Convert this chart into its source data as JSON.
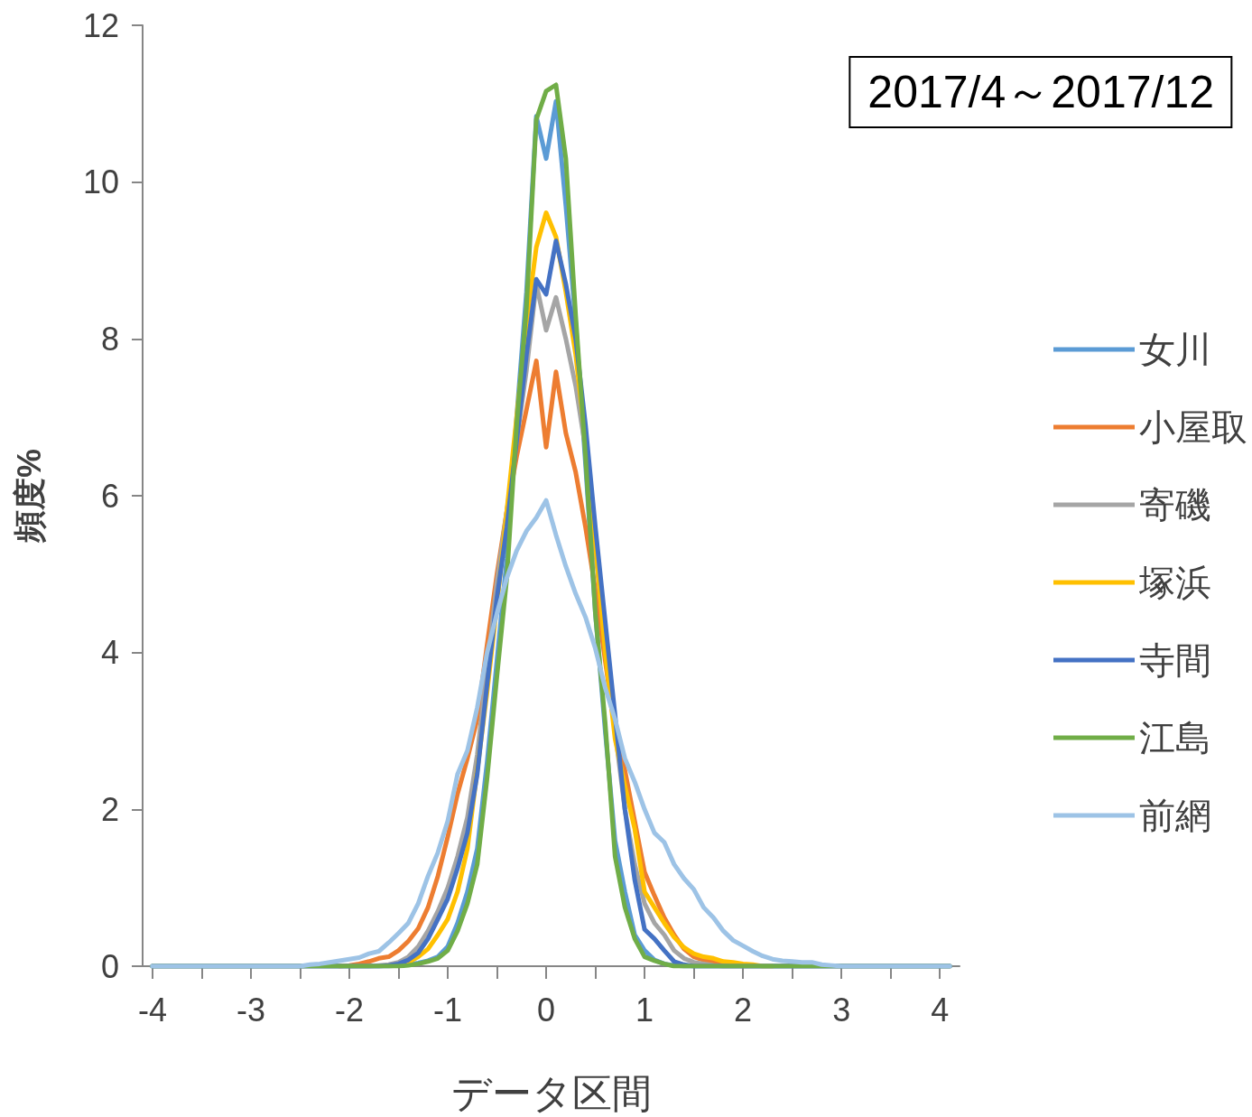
{
  "chart_data": {
    "type": "line",
    "title": "2017/4～2017/12",
    "xlabel": "データ区間",
    "ylabel": "頻度%",
    "x": [
      -4,
      -3,
      -2.5,
      -2.4,
      -2.3,
      -2.2,
      -2.1,
      -2.0,
      -1.9,
      -1.8,
      -1.7,
      -1.6,
      -1.5,
      -1.4,
      -1.3,
      -1.2,
      -1.1,
      -1.0,
      -0.9,
      -0.8,
      -0.7,
      -0.6,
      -0.5,
      -0.4,
      -0.3,
      -0.2,
      -0.1,
      0,
      0.1,
      0.2,
      0.3,
      0.4,
      0.5,
      0.6,
      0.7,
      0.8,
      0.9,
      1.0,
      1.1,
      1.2,
      1.3,
      1.4,
      1.5,
      1.6,
      1.7,
      1.8,
      1.9,
      2.0,
      2.1,
      2.2,
      2.3,
      2.4,
      2.5,
      2.6,
      2.7,
      2.8,
      2.9,
      3.0,
      4.1
    ],
    "series": [
      {
        "name": "女川",
        "color": "#5b9bd5",
        "values": [
          0,
          0,
          0,
          0,
          0,
          0,
          0,
          0,
          0,
          0,
          0,
          0,
          0.01,
          0.02,
          0.04,
          0.07,
          0.12,
          0.25,
          0.55,
          0.95,
          1.5,
          2.6,
          3.9,
          5.2,
          7.0,
          8.6,
          10.84,
          10.3,
          11.03,
          9.7,
          8.2,
          6.4,
          4.5,
          3.0,
          1.6,
          0.95,
          0.4,
          0.2,
          0.08,
          0.03,
          0.01,
          0,
          0,
          0,
          0,
          0,
          0,
          0,
          0,
          0,
          0,
          0,
          0,
          0,
          0,
          0,
          0,
          0,
          0
        ]
      },
      {
        "name": "小屋取",
        "color": "#ed7d31",
        "values": [
          null,
          null,
          null,
          null,
          null,
          null,
          0,
          0.01,
          0.03,
          0.06,
          0.1,
          0.12,
          0.2,
          0.32,
          0.48,
          0.75,
          1.15,
          1.65,
          2.2,
          2.65,
          3.15,
          4.1,
          5.0,
          5.8,
          6.5,
          7.1,
          7.72,
          6.62,
          7.58,
          6.8,
          6.3,
          5.6,
          4.8,
          3.9,
          3.0,
          2.5,
          1.85,
          1.2,
          0.9,
          0.62,
          0.4,
          0.22,
          0.12,
          0.08,
          0.05,
          0.03,
          0.02,
          null,
          null,
          null,
          null,
          null,
          null,
          null,
          null,
          null,
          null,
          null,
          null
        ]
      },
      {
        "name": "寄磯",
        "color": "#a5a5a5",
        "values": [
          0,
          0,
          0,
          0,
          0,
          0,
          0,
          0,
          0,
          0,
          0.01,
          0.02,
          0.05,
          0.12,
          0.25,
          0.45,
          0.7,
          1.0,
          1.4,
          1.9,
          2.7,
          3.8,
          4.9,
          5.8,
          6.7,
          7.6,
          8.7,
          8.11,
          8.53,
          8.0,
          7.4,
          6.6,
          5.3,
          4.1,
          3.0,
          2.0,
          1.3,
          0.8,
          0.55,
          0.4,
          0.2,
          0.1,
          0.05,
          0.03,
          0.01,
          0,
          0,
          0,
          0,
          0,
          0,
          0,
          0,
          0,
          0,
          0,
          0,
          0,
          0
        ]
      },
      {
        "name": "塚浜",
        "color": "#ffc000",
        "values": [
          null,
          null,
          null,
          null,
          null,
          null,
          null,
          null,
          null,
          null,
          null,
          null,
          0.02,
          0.05,
          0.12,
          0.22,
          0.4,
          0.6,
          0.95,
          1.5,
          2.5,
          3.5,
          4.6,
          5.8,
          7.0,
          8.2,
          9.17,
          9.61,
          9.3,
          8.6,
          7.8,
          6.7,
          5.4,
          4.0,
          2.9,
          2.3,
          1.75,
          0.95,
          0.75,
          0.55,
          0.37,
          0.24,
          0.16,
          0.12,
          0.1,
          0.06,
          0.05,
          0.03,
          0.02,
          0,
          0,
          null,
          null,
          null,
          null,
          null,
          null,
          null,
          null
        ]
      },
      {
        "name": "寺間",
        "color": "#4472c4",
        "values": [
          0,
          0,
          0,
          0,
          0,
          0,
          0,
          0,
          0,
          0,
          0,
          0.01,
          0.03,
          0.08,
          0.17,
          0.35,
          0.6,
          0.86,
          1.25,
          1.7,
          2.45,
          3.6,
          4.7,
          5.6,
          6.7,
          7.8,
          8.76,
          8.57,
          9.25,
          8.7,
          8.0,
          6.9,
          5.6,
          4.4,
          3.2,
          2.0,
          1.1,
          0.47,
          0.35,
          0.2,
          0.06,
          0.02,
          0,
          0,
          0,
          0,
          0,
          0,
          0,
          0,
          0,
          0,
          0,
          0,
          0,
          0,
          0,
          0,
          0
        ]
      },
      {
        "name": "江島",
        "color": "#70ad47",
        "values": [
          0,
          0,
          0,
          0,
          0,
          0,
          0,
          0,
          0,
          0,
          0,
          0,
          0,
          0.01,
          0.03,
          0.06,
          0.1,
          0.2,
          0.45,
          0.8,
          1.3,
          2.4,
          3.7,
          4.95,
          6.9,
          8.4,
          10.8,
          11.16,
          11.24,
          10.3,
          8.3,
          6.5,
          4.5,
          3.1,
          1.4,
          0.75,
          0.35,
          0.12,
          0.07,
          0.03,
          0,
          0,
          0,
          0,
          0,
          0,
          0,
          0,
          0,
          0,
          0,
          0,
          0,
          0,
          0,
          0,
          0,
          0,
          0
        ]
      },
      {
        "name": "前網",
        "color": "#9dc3e6",
        "values": [
          0,
          0,
          0,
          0.02,
          0.03,
          0.05,
          0.07,
          0.09,
          0.11,
          0.16,
          0.19,
          0.3,
          0.42,
          0.55,
          0.8,
          1.15,
          1.45,
          1.85,
          2.45,
          2.75,
          3.3,
          4.0,
          4.5,
          4.95,
          5.3,
          5.55,
          5.72,
          5.94,
          5.5,
          5.1,
          4.75,
          4.45,
          4.05,
          3.55,
          3.15,
          2.65,
          2.35,
          2.0,
          1.7,
          1.58,
          1.3,
          1.12,
          0.98,
          0.75,
          0.62,
          0.45,
          0.33,
          0.26,
          0.19,
          0.13,
          0.09,
          0.07,
          0.06,
          0.05,
          0.05,
          0.02,
          0.01,
          0,
          0
        ]
      }
    ],
    "xlim": [
      -4.1,
      4.2
    ],
    "xticks": [
      -4,
      {
        "value": -3.5,
        "label": null
      },
      -3,
      {
        "value": -2.5,
        "label": null
      },
      -2,
      {
        "value": -1.5,
        "label": null
      },
      -1,
      {
        "value": -0.5,
        "label": null
      },
      0,
      {
        "value": 0.5,
        "label": null
      },
      1,
      {
        "value": 1.5,
        "label": null
      },
      2,
      {
        "value": 2.5,
        "label": null
      },
      3,
      {
        "value": 3.5,
        "label": null
      },
      4
    ],
    "ylim": [
      0,
      12
    ],
    "yticks": [
      0,
      2,
      4,
      6,
      8,
      10,
      12
    ],
    "grid": false,
    "legend": "right",
    "marker": "none",
    "line_style": "solid"
  }
}
